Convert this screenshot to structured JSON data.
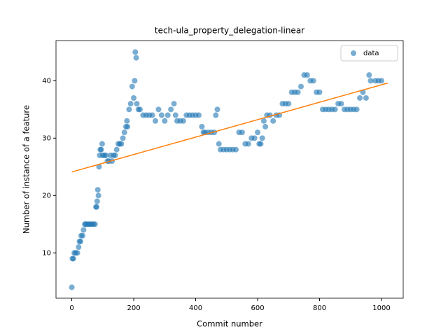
{
  "chart_data": {
    "type": "scatter",
    "title": "tech-ula_property_delegation-linear",
    "xlabel": "Commit number",
    "ylabel": "Number of instance of a feature",
    "xlim": [
      -51,
      1070
    ],
    "ylim": [
      2.1,
      47
    ],
    "xticks": [
      0,
      200,
      400,
      600,
      800,
      1000
    ],
    "yticks": [
      10,
      20,
      30,
      40
    ],
    "legend": "upper right",
    "series": [
      {
        "name": "data",
        "color": "#1f77b4",
        "x": [
          0,
          2,
          5,
          8,
          12,
          18,
          22,
          25,
          28,
          30,
          35,
          38,
          42,
          45,
          50,
          55,
          60,
          65,
          70,
          75,
          78,
          80,
          82,
          84,
          86,
          88,
          90,
          92,
          95,
          98,
          100,
          105,
          110,
          115,
          120,
          125,
          130,
          135,
          140,
          145,
          150,
          155,
          160,
          165,
          170,
          175,
          178,
          180,
          185,
          190,
          195,
          200,
          203,
          205,
          208,
          210,
          215,
          220,
          230,
          240,
          250,
          260,
          270,
          280,
          290,
          300,
          310,
          320,
          330,
          335,
          340,
          350,
          360,
          370,
          380,
          390,
          400,
          410,
          420,
          425,
          430,
          440,
          450,
          460,
          465,
          470,
          475,
          480,
          490,
          500,
          510,
          520,
          530,
          540,
          550,
          560,
          570,
          580,
          590,
          600,
          605,
          610,
          615,
          620,
          625,
          630,
          640,
          650,
          660,
          670,
          680,
          690,
          700,
          710,
          720,
          730,
          740,
          750,
          760,
          770,
          780,
          790,
          800,
          810,
          820,
          830,
          840,
          850,
          860,
          870,
          880,
          890,
          900,
          910,
          920,
          930,
          940,
          950,
          960,
          965,
          980,
          990,
          1000
        ],
        "values": [
          4,
          9,
          9,
          10,
          10,
          10,
          11,
          12,
          12,
          13,
          13,
          14,
          15,
          15,
          15,
          15,
          15,
          15,
          15,
          15,
          18,
          18,
          19,
          21,
          20,
          25,
          27,
          28,
          28,
          29,
          27,
          27,
          27,
          26,
          26,
          27,
          26,
          27,
          27,
          28,
          29,
          29,
          29,
          30,
          31,
          32,
          33,
          32,
          35,
          36,
          39,
          37,
          40,
          45,
          44,
          36,
          35,
          35,
          34,
          34,
          34,
          34,
          33,
          35,
          34,
          33,
          34,
          35,
          36,
          34,
          33,
          33,
          33,
          34,
          34,
          34,
          34,
          34,
          32,
          31,
          31,
          31,
          31,
          31,
          34,
          35,
          29,
          28,
          28,
          28,
          28,
          28,
          28,
          31,
          31,
          29,
          29,
          30,
          30,
          31,
          29,
          29,
          30,
          33,
          32,
          34,
          34,
          33,
          34,
          34,
          36,
          36,
          36,
          38,
          38,
          38,
          39,
          41,
          41,
          40,
          40,
          38,
          38,
          35,
          35,
          35,
          35,
          35,
          36,
          36,
          35,
          35,
          35,
          35,
          35,
          37,
          38,
          37,
          41,
          40,
          40,
          40,
          40
        ]
      }
    ],
    "fit": {
      "color": "#ff7f0e",
      "x": [
        0,
        1020
      ],
      "values": [
        24.1,
        39.6
      ]
    }
  }
}
